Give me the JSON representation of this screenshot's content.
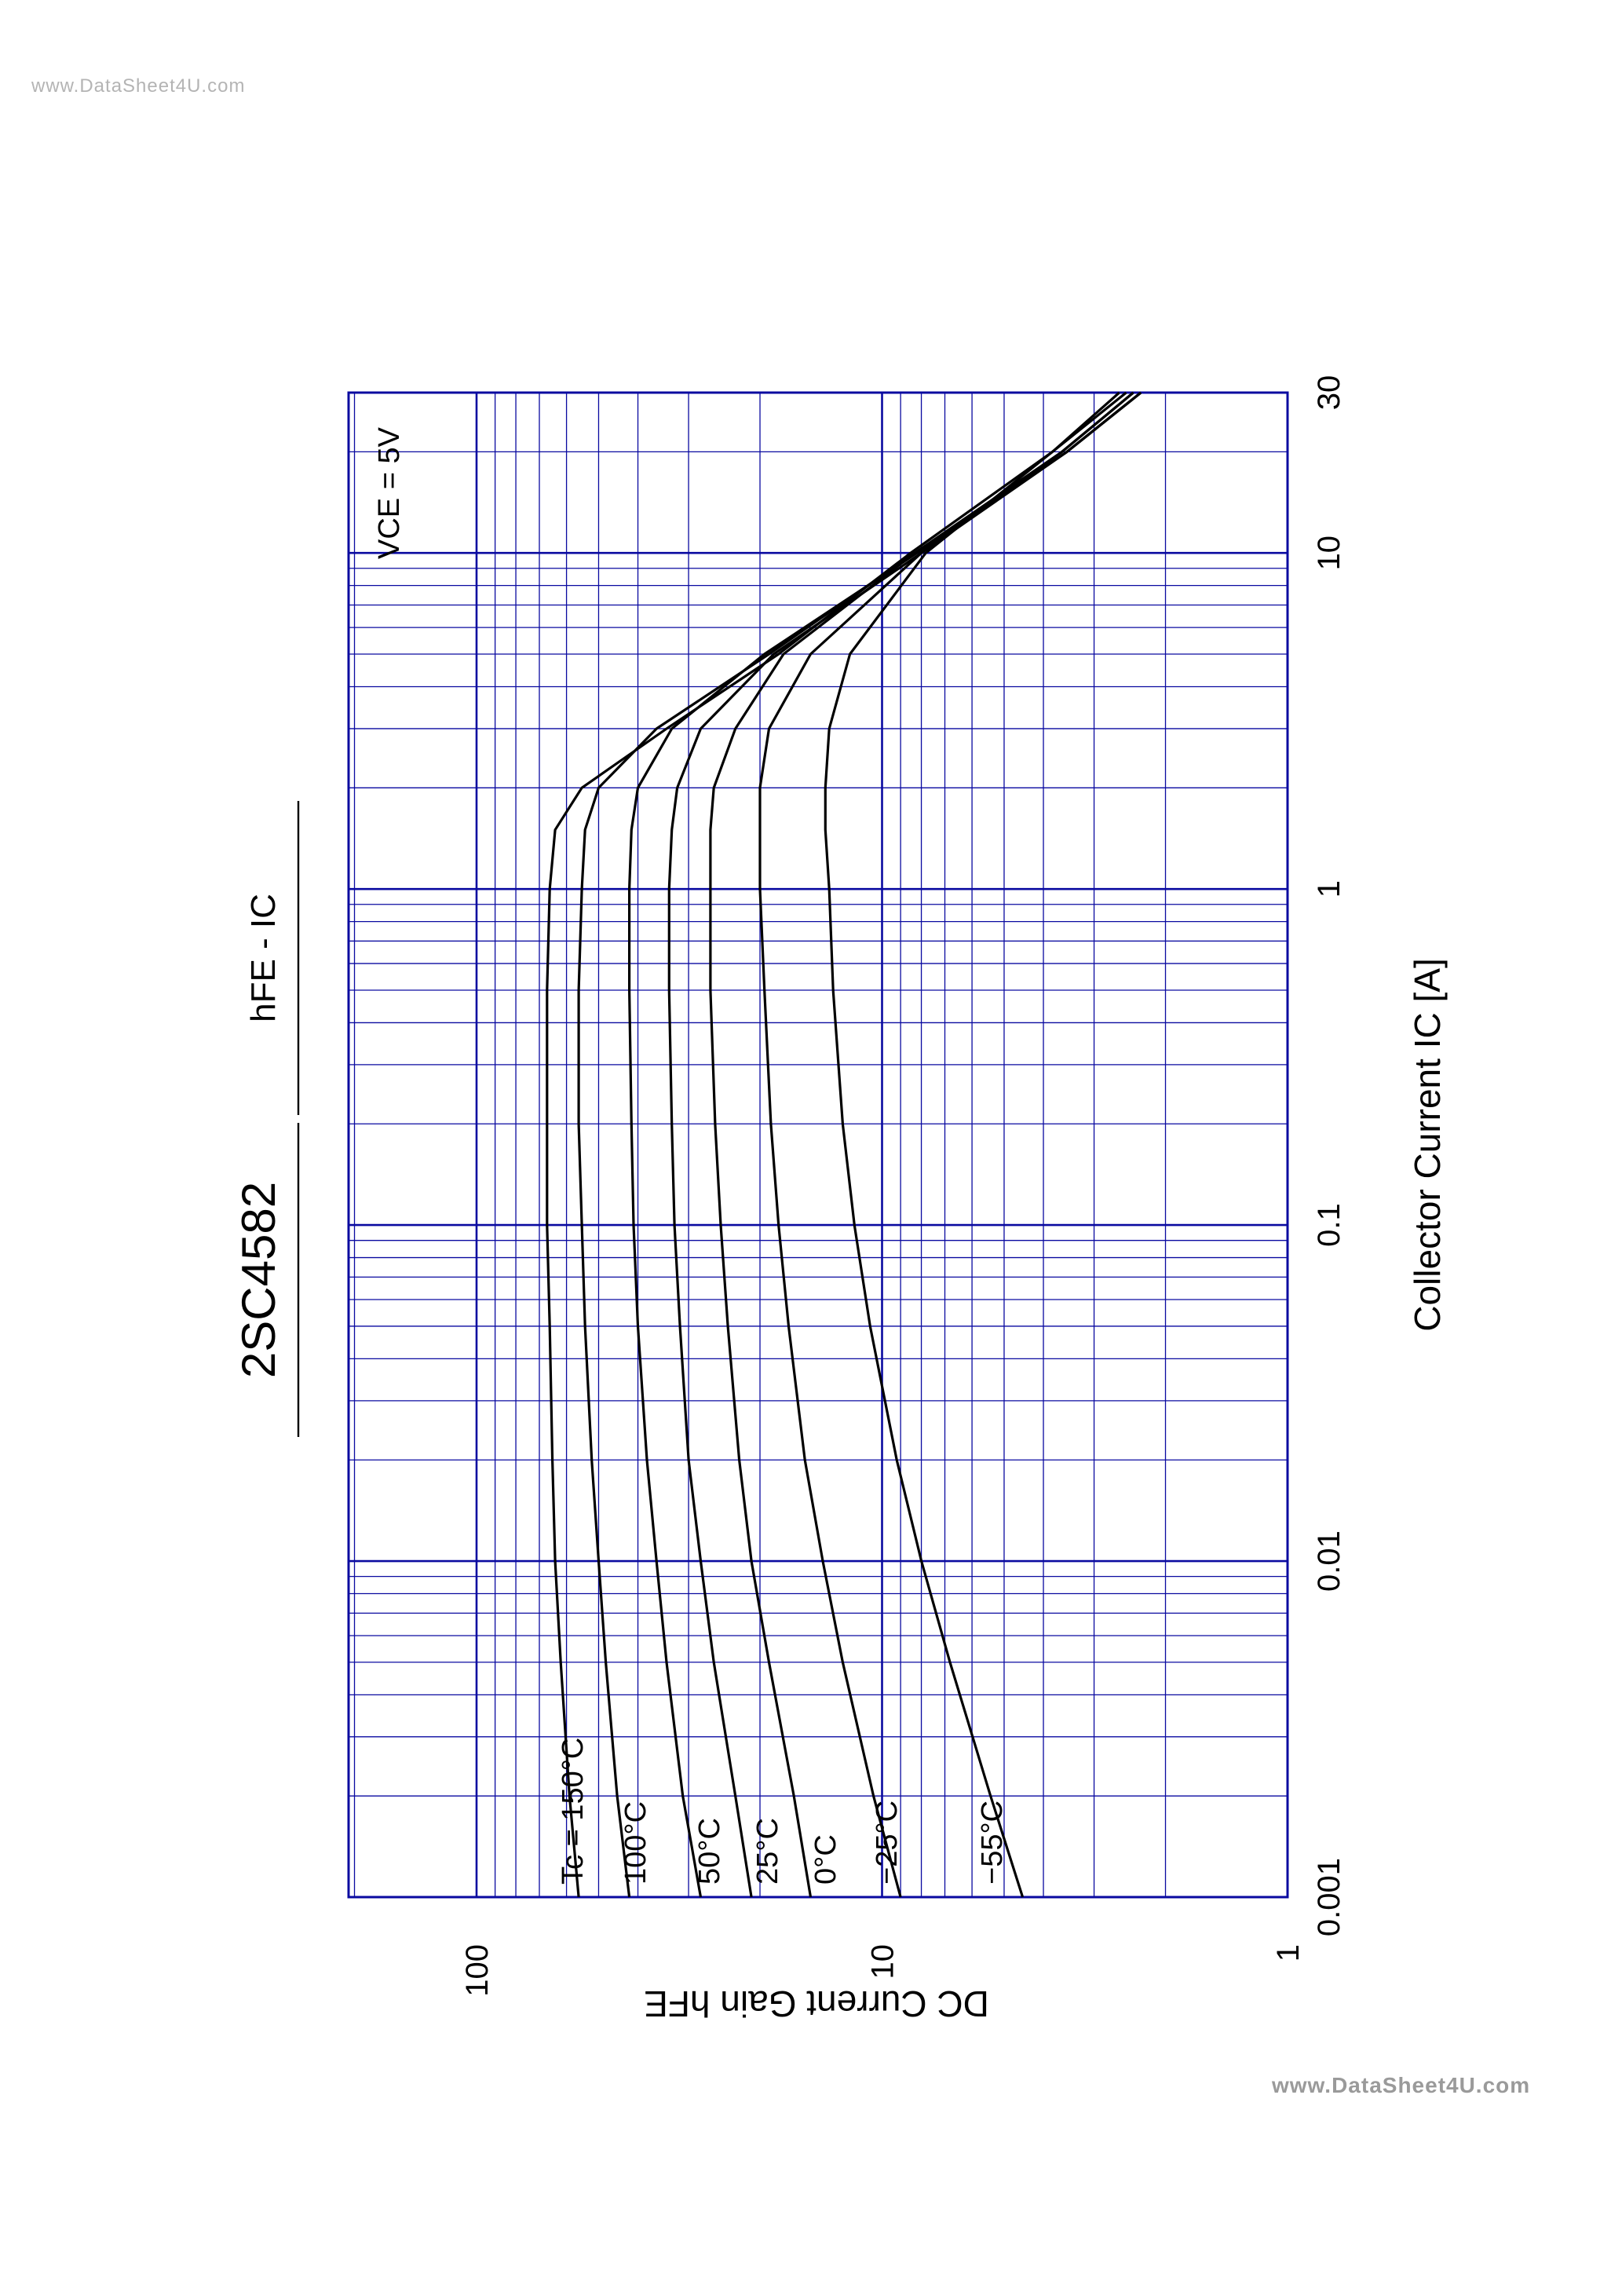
{
  "watermarks": {
    "top": "www.DataSheet4U.com",
    "bottom": "www.DataSheet4U.com"
  },
  "chart_data": {
    "type": "line",
    "part_number": "2SC4582",
    "title": "hFE - IC",
    "xlabel": "Collector Current  IC [A]",
    "ylabel": "DC Current Gain  hFE",
    "condition": "VCE = 5V",
    "x_scale": "log",
    "y_scale": "log",
    "xlim": [
      0.001,
      30
    ],
    "ylim": [
      1,
      500
    ],
    "x_ticks": [
      {
        "value": 0.001,
        "label": "0.001"
      },
      {
        "value": 0.01,
        "label": "0.01"
      },
      {
        "value": 0.1,
        "label": "0.1"
      },
      {
        "value": 1,
        "label": "1"
      },
      {
        "value": 10,
        "label": "10"
      },
      {
        "value": 30,
        "label": "30"
      }
    ],
    "y_ticks": [
      {
        "value": 1,
        "label": "1"
      },
      {
        "value": 10,
        "label": "10"
      },
      {
        "value": 100,
        "label": "100"
      }
    ],
    "grid": true,
    "colors": {
      "grid": "#0a0aa0",
      "curve": "#000000",
      "text": "#000000"
    },
    "series": [
      {
        "name": "Tc = 150°C",
        "x": [
          0.001,
          0.002,
          0.005,
          0.01,
          0.02,
          0.05,
          0.1,
          0.2,
          0.5,
          1,
          1.5,
          2,
          3,
          5,
          10,
          20,
          30
        ],
        "y": [
          56,
          59,
          62,
          64,
          65,
          66,
          67,
          67,
          67,
          66,
          64,
          55,
          34,
          18,
          8.5,
          3.8,
          2.5
        ]
      },
      {
        "name": "100°C",
        "x": [
          0.001,
          0.002,
          0.005,
          0.01,
          0.02,
          0.05,
          0.1,
          0.2,
          0.5,
          1,
          1.5,
          2,
          3,
          5,
          10,
          20,
          30
        ],
        "y": [
          42,
          45,
          48,
          50,
          52,
          54,
          55,
          56,
          56,
          55,
          54,
          50,
          36,
          19,
          8.3,
          3.6,
          2.4
        ]
      },
      {
        "name": "50°C",
        "x": [
          0.001,
          0.002,
          0.005,
          0.01,
          0.02,
          0.05,
          0.1,
          0.2,
          0.5,
          1,
          1.5,
          2,
          3,
          5,
          10,
          20,
          30
        ],
        "y": [
          28,
          31,
          34,
          36,
          38,
          40,
          41,
          41.5,
          42,
          42,
          41.5,
          40,
          33,
          19.5,
          8.2,
          3.5,
          2.3
        ]
      },
      {
        "name": "25°C",
        "x": [
          0.001,
          0.002,
          0.005,
          0.01,
          0.02,
          0.05,
          0.1,
          0.2,
          0.5,
          1,
          1.5,
          2,
          3,
          5,
          10,
          20,
          30
        ],
        "y": [
          21,
          23,
          26,
          28,
          30,
          31.5,
          32.5,
          33,
          33.5,
          33.5,
          33,
          32,
          28,
          18.5,
          8,
          3.5,
          2.3
        ]
      },
      {
        "name": "0°C",
        "x": [
          0.001,
          0.002,
          0.005,
          0.01,
          0.02,
          0.05,
          0.1,
          0.2,
          0.5,
          1,
          1.5,
          2,
          3,
          5,
          10,
          20,
          30
        ],
        "y": [
          15,
          16.5,
          19,
          21,
          22.5,
          24,
          25,
          25.8,
          26.5,
          26.5,
          26.5,
          26,
          23,
          17.5,
          8.3,
          3.5,
          2.3
        ]
      },
      {
        "name": "−25°C",
        "x": [
          0.001,
          0.002,
          0.005,
          0.01,
          0.02,
          0.05,
          0.1,
          0.2,
          0.5,
          1,
          1.5,
          2,
          3,
          5,
          10,
          20,
          30
        ],
        "y": [
          9,
          10.5,
          12.5,
          14,
          15.5,
          17,
          18,
          18.8,
          19.5,
          20,
          20,
          20,
          19,
          15,
          8,
          3.6,
          2.4
        ]
      },
      {
        "name": "−55°C",
        "x": [
          0.001,
          0.002,
          0.005,
          0.01,
          0.02,
          0.05,
          0.1,
          0.2,
          0.5,
          1,
          1.5,
          2,
          3,
          5,
          10,
          20,
          30
        ],
        "y": [
          4.5,
          5.4,
          6.8,
          8,
          9.2,
          10.7,
          11.7,
          12.5,
          13.2,
          13.5,
          13.8,
          13.8,
          13.5,
          12,
          7.8,
          3.8,
          2.6
        ]
      }
    ]
  }
}
